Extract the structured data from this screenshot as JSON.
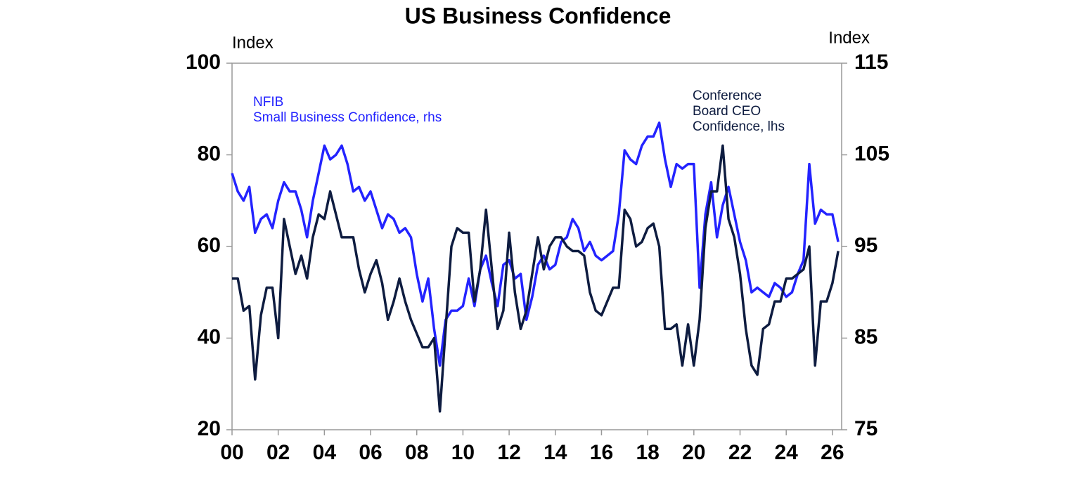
{
  "chart_data": {
    "type": "line",
    "title": "US Business Confidence",
    "y_label": "Index",
    "y2_label": "Index",
    "xlim": [
      2000,
      2026.4
    ],
    "ylim": [
      20,
      100
    ],
    "y2lim": [
      75,
      115
    ],
    "xticks": [
      {
        "value": 2000,
        "label": "00"
      },
      {
        "value": 2002,
        "label": "02"
      },
      {
        "value": 2004,
        "label": "04"
      },
      {
        "value": 2006,
        "label": "06"
      },
      {
        "value": 2008,
        "label": "08"
      },
      {
        "value": 2010,
        "label": "10"
      },
      {
        "value": 2012,
        "label": "12"
      },
      {
        "value": 2014,
        "label": "14"
      },
      {
        "value": 2016,
        "label": "16"
      },
      {
        "value": 2018,
        "label": "18"
      },
      {
        "value": 2020,
        "label": "20"
      },
      {
        "value": 2022,
        "label": "22"
      },
      {
        "value": 2024,
        "label": "24"
      },
      {
        "value": 2026,
        "label": "26"
      }
    ],
    "yticks": [
      20,
      40,
      60,
      80,
      100
    ],
    "y2ticks": [
      75,
      85,
      95,
      105,
      115
    ],
    "x": [
      2000,
      2000.25,
      2000.5,
      2000.75,
      2001,
      2001.25,
      2001.5,
      2001.75,
      2002,
      2002.25,
      2002.5,
      2002.75,
      2003,
      2003.25,
      2003.5,
      2003.75,
      2004,
      2004.25,
      2004.5,
      2004.75,
      2005,
      2005.25,
      2005.5,
      2005.75,
      2006,
      2006.25,
      2006.5,
      2006.75,
      2007,
      2007.25,
      2007.5,
      2007.75,
      2008,
      2008.25,
      2008.5,
      2008.75,
      2009,
      2009.25,
      2009.5,
      2009.75,
      2010,
      2010.25,
      2010.5,
      2010.75,
      2011,
      2011.25,
      2011.5,
      2011.75,
      2012,
      2012.25,
      2012.5,
      2012.75,
      2013,
      2013.25,
      2013.5,
      2013.75,
      2014,
      2014.25,
      2014.5,
      2014.75,
      2015,
      2015.25,
      2015.5,
      2015.75,
      2016,
      2016.25,
      2016.5,
      2016.75,
      2017,
      2017.25,
      2017.5,
      2017.75,
      2018,
      2018.25,
      2018.5,
      2018.75,
      2019,
      2019.25,
      2019.5,
      2019.75,
      2020,
      2020.25,
      2020.5,
      2020.75,
      2021,
      2021.25,
      2021.5,
      2021.75,
      2022,
      2022.25,
      2022.5,
      2022.75,
      2023,
      2023.25,
      2023.5,
      2023.75,
      2024,
      2024.25,
      2024.5,
      2024.75,
      2025,
      2025.25,
      2025.5,
      2025.75,
      2026,
      2026.25
    ],
    "series": [
      {
        "name": [
          "NFIB",
          "Small Business Confidence, rhs"
        ],
        "color": "#2323ff",
        "axis": "y2",
        "values": [
          103,
          101,
          100,
          101.5,
          96.5,
          98,
          98.5,
          97,
          100,
          102,
          101,
          101,
          99,
          96,
          100,
          103,
          106,
          104.5,
          105,
          106,
          104,
          101,
          101.5,
          100,
          101,
          99,
          97,
          98.5,
          98,
          96.5,
          97,
          96,
          92,
          89,
          91.5,
          86,
          82,
          87,
          88,
          88,
          88.5,
          91.5,
          88.5,
          92.5,
          94,
          91,
          88.5,
          93,
          93.5,
          91.5,
          92,
          87,
          89.5,
          93,
          94,
          92.5,
          93,
          95.5,
          96,
          98,
          97,
          94.5,
          95.5,
          94,
          93.5,
          94,
          94.5,
          98.5,
          105.5,
          104.5,
          104,
          106,
          107,
          107,
          108.5,
          104.5,
          101.5,
          104,
          103.5,
          104,
          104,
          90.5,
          98.5,
          102,
          96,
          99.5,
          101.5,
          98.5,
          95.5,
          93.5,
          90,
          90.5,
          90,
          89.5,
          91,
          90.5,
          89.5,
          90,
          92,
          93.5,
          104,
          97.5,
          99,
          98.5,
          98.5,
          95.5
        ]
      },
      {
        "name": [
          "Conference",
          "Board CEO",
          "Confidence, lhs"
        ],
        "color": "#0e1c40",
        "values": [
          53,
          53,
          46,
          47,
          31,
          45,
          51,
          51,
          40,
          66,
          60,
          54,
          58,
          53,
          62,
          67,
          66,
          72,
          67,
          62,
          62,
          62,
          55,
          50,
          54,
          57,
          52,
          44,
          48,
          53,
          48,
          44,
          41,
          38,
          38,
          40,
          24,
          42,
          60,
          64,
          63,
          63,
          48,
          55,
          68,
          55,
          42,
          46,
          63,
          50,
          42,
          46,
          54,
          62,
          55,
          60,
          62,
          62,
          60,
          59,
          59,
          58,
          50,
          46,
          45,
          48,
          51,
          51,
          68,
          66,
          60,
          61,
          64,
          65,
          60,
          42,
          42,
          43,
          34,
          43,
          34,
          44,
          64,
          72,
          72,
          82,
          66,
          62,
          54,
          42,
          34,
          32,
          42,
          43,
          48,
          48,
          53,
          53,
          54,
          55,
          60,
          34,
          48,
          48,
          52,
          59
        ]
      }
    ]
  }
}
